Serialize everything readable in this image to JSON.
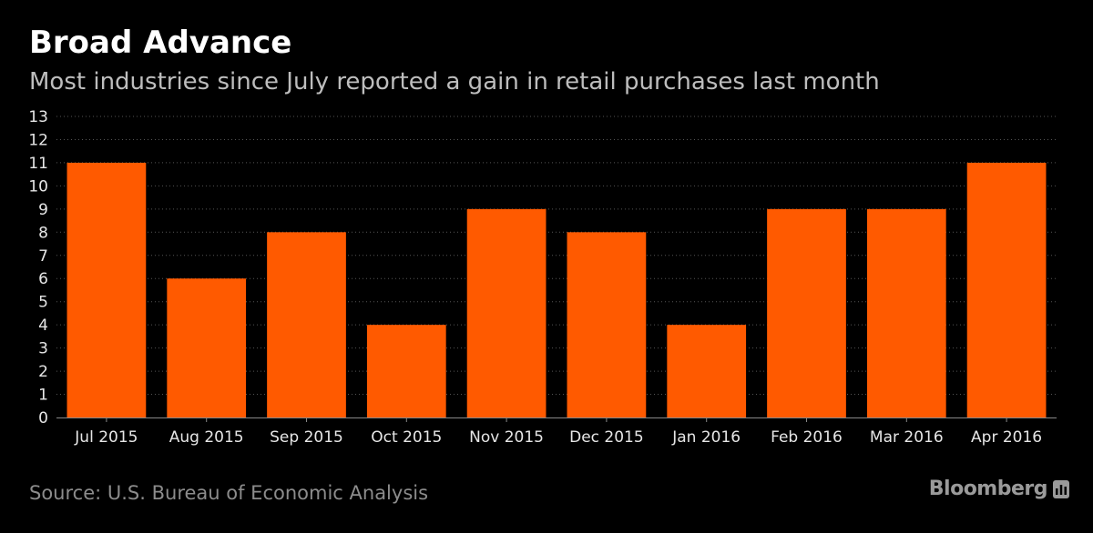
{
  "header": {
    "title": "Broad Advance",
    "subtitle": "Most industries since July reported a gain in retail purchases last month"
  },
  "footer": {
    "source": "Source: U.S. Bureau of Economic Analysis",
    "brand": "Bloomberg",
    "brand_icon": "bloomberg-bars-icon"
  },
  "colors": {
    "background": "#000000",
    "bar": "#ff5a00",
    "grid": "#555555",
    "axis": "#888888"
  },
  "chart_data": {
    "type": "bar",
    "title": "Broad Advance",
    "subtitle": "Most industries since July reported a gain in retail purchases last month",
    "xlabel": "",
    "ylabel": "",
    "categories": [
      "Jul 2015",
      "Aug 2015",
      "Sep 2015",
      "Oct 2015",
      "Nov 2015",
      "Dec 2015",
      "Jan 2016",
      "Feb 2016",
      "Mar 2016",
      "Apr 2016"
    ],
    "values": [
      11,
      6,
      8,
      4,
      9,
      8,
      4,
      9,
      9,
      11
    ],
    "ylim": [
      0,
      13
    ],
    "yticks": [
      0,
      1,
      2,
      3,
      4,
      5,
      6,
      7,
      8,
      9,
      10,
      11,
      12,
      13
    ],
    "grid": true,
    "legend": "none"
  }
}
